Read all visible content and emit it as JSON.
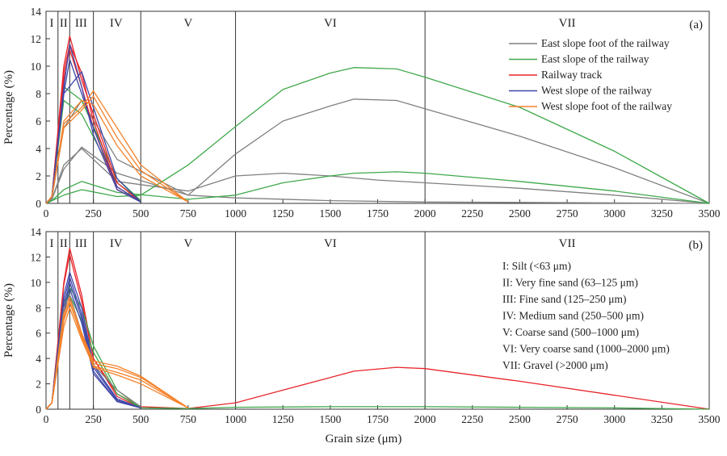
{
  "xlabel": "Grain size (μm)",
  "ylabel": "Percentage (%)",
  "colors": {
    "east_slope_foot": "#808080",
    "east_slope": "#3fa84a",
    "railway_track": "#e8262b",
    "west_slope": "#3f46a8",
    "west_slope_foot": "#f5822a"
  },
  "chart_data": [
    {
      "type": "line",
      "panel_label": "(a)",
      "xlim": [
        0,
        3500
      ],
      "ylim": [
        0,
        14
      ],
      "xticks": [
        0,
        250,
        500,
        750,
        1000,
        1250,
        1500,
        1750,
        2000,
        2250,
        2500,
        2750,
        3000,
        3250,
        3500
      ],
      "yticks": [
        0,
        2,
        4,
        6,
        8,
        10,
        12,
        14
      ],
      "zone_boundaries": [
        63,
        125,
        250,
        500,
        1000,
        2000
      ],
      "zones": [
        {
          "label": "I",
          "x": 30
        },
        {
          "label": "II",
          "x": 93
        },
        {
          "label": "III",
          "x": 185
        },
        {
          "label": "IV",
          "x": 370
        },
        {
          "label": "V",
          "x": 750
        },
        {
          "label": "VI",
          "x": 1500
        },
        {
          "label": "VII",
          "x": 2750
        }
      ],
      "legend": {
        "position": "top-right",
        "entries": [
          {
            "name": "East slope foot of the railway",
            "color": "#808080"
          },
          {
            "name": "East slope of the railway",
            "color": "#3fa84a"
          },
          {
            "name": "Railway track",
            "color": "#e8262b"
          },
          {
            "name": "West slope of the railway",
            "color": "#3f46a8"
          },
          {
            "name": "West slope foot of the railway",
            "color": "#f5822a"
          }
        ]
      },
      "series": [
        {
          "color": "#808080",
          "x": [
            0,
            31,
            94,
            188,
            375,
            750,
            1000,
            1250,
            1500,
            1625,
            1850,
            2000,
            2500,
            3000,
            3500
          ],
          "y": [
            0,
            0.3,
            2.5,
            4.1,
            2.2,
            0.6,
            3.6,
            6.0,
            7.1,
            7.6,
            7.5,
            6.9,
            4.9,
            2.6,
            0
          ]
        },
        {
          "color": "#808080",
          "x": [
            0,
            31,
            94,
            188,
            375,
            750,
            1000,
            1250,
            1500,
            1750,
            2000,
            2500,
            3000,
            3500
          ],
          "y": [
            0,
            0.3,
            2.8,
            4.0,
            1.6,
            0.9,
            2.0,
            2.2,
            2.0,
            1.7,
            1.5,
            1.1,
            0.6,
            0
          ]
        },
        {
          "color": "#808080",
          "x": [
            0,
            31,
            94,
            188,
            375,
            750,
            1000,
            1500,
            2000,
            3500
          ],
          "y": [
            0,
            0.4,
            5.5,
            7.5,
            3.2,
            0.6,
            0.4,
            0.2,
            0.1,
            0
          ]
        },
        {
          "color": "#3fa84a",
          "x": [
            0,
            31,
            94,
            188,
            375,
            500,
            750,
            1000,
            1250,
            1500,
            1625,
            1850,
            2000,
            2500,
            3000,
            3500
          ],
          "y": [
            0,
            0.2,
            0.6,
            1.0,
            0.5,
            0.6,
            2.8,
            5.6,
            8.3,
            9.5,
            9.9,
            9.8,
            9.2,
            7.0,
            3.8,
            0
          ]
        },
        {
          "color": "#3fa84a",
          "x": [
            0,
            31,
            94,
            188,
            375,
            750,
            1000,
            1250,
            1500,
            1625,
            1850,
            2000,
            2500,
            3000,
            3500
          ],
          "y": [
            0,
            0.2,
            1.0,
            1.6,
            0.8,
            0.3,
            0.6,
            1.5,
            2.0,
            2.2,
            2.3,
            2.2,
            1.6,
            0.9,
            0
          ]
        },
        {
          "color": "#3fa84a",
          "x": [
            0,
            31,
            94,
            188,
            375,
            500
          ],
          "y": [
            0,
            0.5,
            7.5,
            6.5,
            1.5,
            0.2
          ]
        },
        {
          "color": "#3fa84a",
          "x": [
            0,
            31,
            94,
            188,
            375,
            500
          ],
          "y": [
            0,
            0.5,
            8.5,
            7.5,
            1.8,
            0.2
          ]
        },
        {
          "color": "#e8262b",
          "x": [
            0,
            31,
            94,
            125,
            188,
            250,
            375,
            500
          ],
          "y": [
            0,
            0.5,
            10,
            12.2,
            9.0,
            6.5,
            1.5,
            0.1
          ]
        },
        {
          "color": "#e8262b",
          "x": [
            0,
            31,
            94,
            125,
            188,
            250,
            375,
            500
          ],
          "y": [
            0,
            0.5,
            9.5,
            11.6,
            9.5,
            6.0,
            1.2,
            0.1
          ]
        },
        {
          "color": "#e8262b",
          "x": [
            0,
            31,
            94,
            125,
            188,
            250,
            375,
            500
          ],
          "y": [
            0,
            0.5,
            9.0,
            11.2,
            8.5,
            5.5,
            1.0,
            0.1
          ]
        },
        {
          "color": "#3f46a8",
          "x": [
            0,
            31,
            94,
            125,
            188,
            250,
            375,
            500
          ],
          "y": [
            0,
            0.5,
            8.5,
            11.6,
            8.5,
            5.0,
            1.0,
            0.1
          ]
        },
        {
          "color": "#3f46a8",
          "x": [
            0,
            31,
            94,
            125,
            188,
            250,
            375,
            500
          ],
          "y": [
            0,
            0.5,
            8.0,
            10.5,
            8.0,
            5.5,
            1.2,
            0.1
          ]
        },
        {
          "color": "#3f46a8",
          "x": [
            0,
            31,
            94,
            188,
            250,
            375,
            500
          ],
          "y": [
            0,
            0.5,
            8.0,
            9.6,
            7.0,
            1.8,
            0.1
          ]
        },
        {
          "color": "#f5822a",
          "x": [
            0,
            31,
            94,
            188,
            250,
            375,
            500,
            750
          ],
          "y": [
            0,
            0.5,
            5.8,
            7.0,
            8.2,
            5.5,
            2.8,
            0.1
          ]
        },
        {
          "color": "#f5822a",
          "x": [
            0,
            31,
            94,
            188,
            250,
            375,
            500,
            750
          ],
          "y": [
            0,
            0.5,
            5.5,
            6.8,
            7.8,
            4.8,
            2.4,
            0.1
          ]
        },
        {
          "color": "#f5822a",
          "x": [
            0,
            31,
            94,
            188,
            250,
            375,
            500,
            750
          ],
          "y": [
            0,
            0.5,
            6.0,
            7.5,
            7.2,
            4.2,
            2.0,
            0.1
          ]
        }
      ]
    },
    {
      "type": "line",
      "panel_label": "(b)",
      "xlim": [
        0,
        3500
      ],
      "ylim": [
        0,
        14
      ],
      "xticks": [
        0,
        250,
        500,
        750,
        1000,
        1250,
        1500,
        1750,
        2000,
        2250,
        2500,
        2750,
        3000,
        3250,
        3500
      ],
      "yticks": [
        0,
        2,
        4,
        6,
        8,
        10,
        12,
        14
      ],
      "zone_boundaries": [
        63,
        125,
        250,
        500,
        1000,
        2000
      ],
      "zones": [
        {
          "label": "I",
          "x": 30
        },
        {
          "label": "II",
          "x": 93
        },
        {
          "label": "III",
          "x": 185
        },
        {
          "label": "IV",
          "x": 370
        },
        {
          "label": "V",
          "x": 750
        },
        {
          "label": "VI",
          "x": 1500
        },
        {
          "label": "VII",
          "x": 2750
        }
      ],
      "notes": [
        "I: Silt (<63 μm)",
        "II: Very fine sand  (63–125 μm)",
        "III: Fine sand (125–250 μm)",
        "IV: Medium sand (250–500 μm)",
        "V: Coarse sand (500–1000 μm)",
        "VI: Very coarse sand  (1000–2000 μm)",
        "VII: Gravel (>2000 μm)"
      ],
      "series": [
        {
          "color": "#e8262b",
          "x": [
            0,
            31,
            94,
            125,
            188,
            250,
            375,
            500,
            750,
            1000,
            1250,
            1500,
            1625,
            1850,
            2000,
            2500,
            3000,
            3500
          ],
          "y": [
            0,
            0.5,
            10,
            12.7,
            9.0,
            4.0,
            1.2,
            0.2,
            0.05,
            0.5,
            1.5,
            2.5,
            3.0,
            3.3,
            3.2,
            2.2,
            1.1,
            0
          ]
        },
        {
          "color": "#e8262b",
          "x": [
            0,
            31,
            94,
            125,
            188,
            250,
            375,
            500
          ],
          "y": [
            0,
            0.5,
            9.8,
            12.2,
            8.5,
            4.0,
            1.0,
            0.1
          ]
        },
        {
          "color": "#3fa84a",
          "x": [
            0,
            31,
            94,
            125,
            188,
            250,
            375,
            500,
            750,
            1000,
            1500,
            2000,
            2500,
            3000,
            3500
          ],
          "y": [
            0,
            0.5,
            8.0,
            9.6,
            8.0,
            5.0,
            1.5,
            0.1,
            0.05,
            0.15,
            0.2,
            0.2,
            0.15,
            0.1,
            0
          ]
        },
        {
          "color": "#3fa84a",
          "x": [
            0,
            31,
            94,
            125,
            188,
            250,
            375,
            500
          ],
          "y": [
            0,
            0.5,
            8.5,
            9.0,
            7.0,
            4.5,
            1.2,
            0.1
          ]
        },
        {
          "color": "#3f46a8",
          "x": [
            0,
            31,
            94,
            125,
            188,
            250,
            375,
            500
          ],
          "y": [
            0,
            0.5,
            9.0,
            10.8,
            8.0,
            3.5,
            0.8,
            0.1
          ]
        },
        {
          "color": "#3f46a8",
          "x": [
            0,
            31,
            94,
            125,
            188,
            250,
            375,
            500
          ],
          "y": [
            0,
            0.5,
            8.5,
            10.4,
            7.5,
            3.3,
            0.7,
            0.1
          ]
        },
        {
          "color": "#3f46a8",
          "x": [
            0,
            31,
            94,
            125,
            188,
            250,
            375,
            500
          ],
          "y": [
            0,
            0.5,
            8.0,
            10.0,
            7.2,
            3.0,
            0.6,
            0.1
          ]
        },
        {
          "color": "#3f46a8",
          "x": [
            0,
            31,
            94,
            125,
            188,
            250,
            375,
            500
          ],
          "y": [
            0,
            0.5,
            7.5,
            9.5,
            6.8,
            2.8,
            0.6,
            0.1
          ]
        },
        {
          "color": "#808080",
          "x": [
            0,
            31,
            94,
            125,
            188,
            250,
            375,
            500
          ],
          "y": [
            0,
            0.5,
            8.0,
            9.0,
            6.0,
            3.5,
            1.5,
            0.2
          ]
        },
        {
          "color": "#f5822a",
          "x": [
            0,
            31,
            94,
            125,
            188,
            250,
            375,
            500,
            750
          ],
          "y": [
            0,
            0.5,
            7.5,
            8.8,
            6.0,
            3.8,
            3.4,
            2.6,
            0.1
          ]
        },
        {
          "color": "#f5822a",
          "x": [
            0,
            31,
            94,
            125,
            188,
            250,
            375,
            500,
            750
          ],
          "y": [
            0,
            0.5,
            7.0,
            8.4,
            5.8,
            3.6,
            3.2,
            2.5,
            0.1
          ]
        },
        {
          "color": "#f5822a",
          "x": [
            0,
            31,
            94,
            125,
            188,
            250,
            375,
            500,
            750
          ],
          "y": [
            0,
            0.5,
            6.5,
            8.0,
            5.5,
            3.4,
            2.9,
            2.3,
            0.1
          ]
        },
        {
          "color": "#f5822a",
          "x": [
            0,
            31,
            94,
            125,
            188,
            250,
            375,
            500,
            750
          ],
          "y": [
            0,
            0.5,
            7.2,
            8.5,
            5.7,
            3.3,
            2.7,
            2.0,
            0.1
          ]
        }
      ]
    }
  ]
}
